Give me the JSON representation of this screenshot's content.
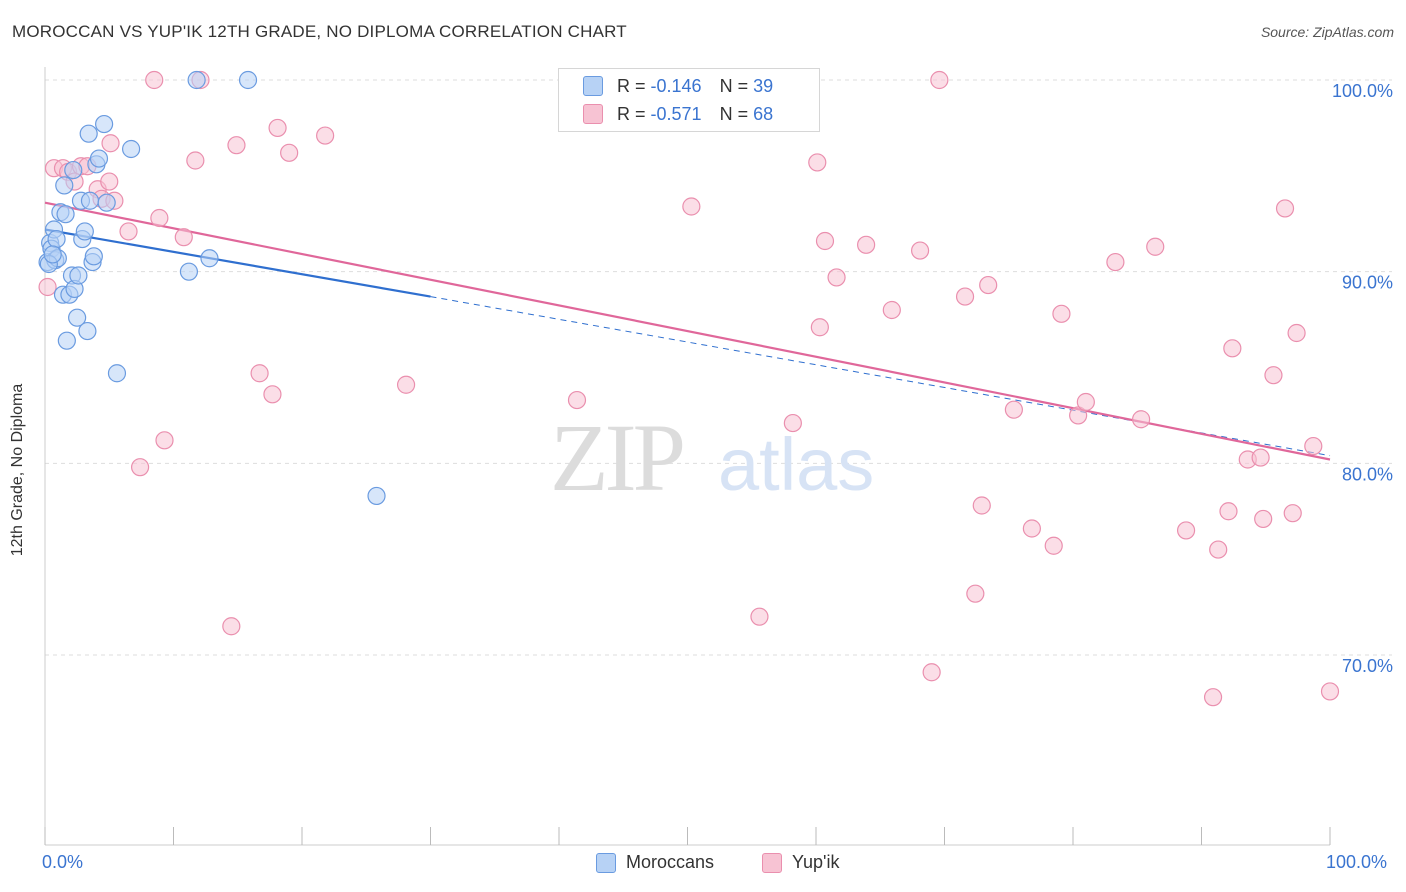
{
  "title": "MOROCCAN VS YUP'IK 12TH GRADE, NO DIPLOMA CORRELATION CHART",
  "source": "Source: ZipAtlas.com",
  "watermark": {
    "zip": "ZIP",
    "atlas": "atlas"
  },
  "colors": {
    "blue_fill": "#b7d2f5",
    "blue_stroke": "#6a9be0",
    "blue_line": "#2f6fcf",
    "pink_fill": "#f7c3d3",
    "pink_stroke": "#ea8fae",
    "pink_line": "#e0679a",
    "grid": "#dddddd",
    "axis_text": "#3a74d0"
  },
  "legend": {
    "rows": [
      {
        "r_label": "R =",
        "r_value": "-0.146",
        "n_label": "N =",
        "n_value": "39"
      },
      {
        "r_label": "R =",
        "r_value": "-0.571",
        "n_label": "N =",
        "n_value": "68"
      }
    ]
  },
  "bottom_legend": [
    "Moroccans",
    "Yup'ik"
  ],
  "x_tick_labels": {
    "left": "0.0%",
    "right": "100.0%"
  },
  "chart_data": {
    "type": "scatter",
    "title": "MOROCCAN VS YUP'IK 12TH GRADE, NO DIPLOMA CORRELATION CHART",
    "xlabel": "",
    "ylabel": "12th Grade, No Diploma",
    "xlim": [
      0,
      100
    ],
    "ylim": [
      59.5,
      101
    ],
    "y_ticks": [
      70,
      80,
      90,
      100
    ],
    "y_tick_labels": [
      "70.0%",
      "80.0%",
      "90.0%",
      "100.0%"
    ],
    "grid": true,
    "series": [
      {
        "name": "Moroccans",
        "points": [
          [
            0.2,
            90.5
          ],
          [
            0.4,
            91.5
          ],
          [
            0.5,
            91.2
          ],
          [
            0.7,
            92.2
          ],
          [
            0.8,
            90.6
          ],
          [
            0.9,
            91.7
          ],
          [
            1.0,
            90.7
          ],
          [
            1.2,
            93.1
          ],
          [
            1.4,
            88.8
          ],
          [
            1.5,
            94.5
          ],
          [
            1.6,
            93.0
          ],
          [
            1.7,
            86.4
          ],
          [
            1.9,
            88.8
          ],
          [
            2.1,
            89.8
          ],
          [
            2.2,
            95.3
          ],
          [
            2.3,
            89.1
          ],
          [
            2.5,
            87.6
          ],
          [
            2.6,
            89.8
          ],
          [
            2.8,
            93.7
          ],
          [
            2.9,
            91.7
          ],
          [
            3.1,
            92.1
          ],
          [
            3.3,
            86.9
          ],
          [
            3.4,
            97.2
          ],
          [
            3.5,
            93.7
          ],
          [
            3.7,
            90.5
          ],
          [
            3.8,
            90.8
          ],
          [
            4.0,
            95.6
          ],
          [
            4.2,
            95.9
          ],
          [
            4.6,
            97.7
          ],
          [
            4.8,
            93.6
          ],
          [
            5.6,
            84.7
          ],
          [
            6.7,
            96.4
          ],
          [
            11.2,
            90.0
          ],
          [
            11.8,
            100.0
          ],
          [
            12.8,
            90.7
          ],
          [
            15.8,
            100.0
          ],
          [
            25.8,
            78.3
          ],
          [
            0.3,
            90.4
          ],
          [
            0.6,
            90.9
          ]
        ]
      },
      {
        "name": "Yup'ik",
        "points": [
          [
            0.2,
            89.2
          ],
          [
            0.7,
            95.4
          ],
          [
            1.4,
            95.4
          ],
          [
            1.8,
            95.2
          ],
          [
            2.3,
            94.7
          ],
          [
            2.8,
            95.5
          ],
          [
            3.3,
            95.5
          ],
          [
            4.1,
            94.3
          ],
          [
            4.4,
            93.8
          ],
          [
            5.0,
            94.7
          ],
          [
            5.4,
            93.7
          ],
          [
            5.1,
            96.7
          ],
          [
            6.5,
            92.1
          ],
          [
            7.4,
            79.8
          ],
          [
            8.5,
            100.0
          ],
          [
            8.9,
            92.8
          ],
          [
            9.3,
            81.2
          ],
          [
            10.8,
            91.8
          ],
          [
            11.7,
            95.8
          ],
          [
            12.1,
            100.0
          ],
          [
            14.5,
            71.5
          ],
          [
            14.9,
            96.6
          ],
          [
            16.7,
            84.7
          ],
          [
            17.7,
            83.6
          ],
          [
            18.1,
            97.5
          ],
          [
            19.0,
            96.2
          ],
          [
            21.8,
            97.1
          ],
          [
            28.1,
            84.1
          ],
          [
            41.4,
            83.3
          ],
          [
            50.3,
            93.4
          ],
          [
            55.6,
            72.0
          ],
          [
            58.2,
            82.1
          ],
          [
            60.1,
            95.7
          ],
          [
            60.3,
            87.1
          ],
          [
            60.7,
            91.6
          ],
          [
            61.6,
            89.7
          ],
          [
            63.9,
            91.4
          ],
          [
            65.9,
            88.0
          ],
          [
            68.1,
            91.1
          ],
          [
            69.0,
            69.1
          ],
          [
            69.6,
            100.0
          ],
          [
            71.6,
            88.7
          ],
          [
            72.4,
            73.2
          ],
          [
            72.9,
            77.8
          ],
          [
            73.4,
            89.3
          ],
          [
            75.4,
            82.8
          ],
          [
            76.8,
            76.6
          ],
          [
            78.5,
            75.7
          ],
          [
            79.1,
            87.8
          ],
          [
            80.4,
            82.5
          ],
          [
            81.0,
            83.2
          ],
          [
            83.3,
            90.5
          ],
          [
            85.3,
            82.3
          ],
          [
            86.4,
            91.3
          ],
          [
            88.8,
            76.5
          ],
          [
            90.9,
            67.8
          ],
          [
            91.3,
            75.5
          ],
          [
            92.1,
            77.5
          ],
          [
            92.4,
            86.0
          ],
          [
            93.6,
            80.2
          ],
          [
            94.6,
            80.3
          ],
          [
            94.8,
            77.1
          ],
          [
            95.6,
            84.6
          ],
          [
            96.5,
            93.3
          ],
          [
            97.1,
            77.4
          ],
          [
            97.4,
            86.8
          ],
          [
            98.7,
            80.9
          ],
          [
            100.0,
            68.1
          ]
        ]
      }
    ],
    "trend_lines": [
      {
        "series": "Moroccans",
        "solid": {
          "x": [
            0,
            30
          ],
          "y": [
            92.2,
            88.7
          ]
        },
        "dashed": {
          "x": [
            30,
            100
          ],
          "y": [
            88.7,
            80.4
          ]
        }
      },
      {
        "series": "Yup'ik",
        "solid": {
          "x": [
            0,
            100
          ],
          "y": [
            93.6,
            80.2
          ]
        }
      }
    ]
  }
}
